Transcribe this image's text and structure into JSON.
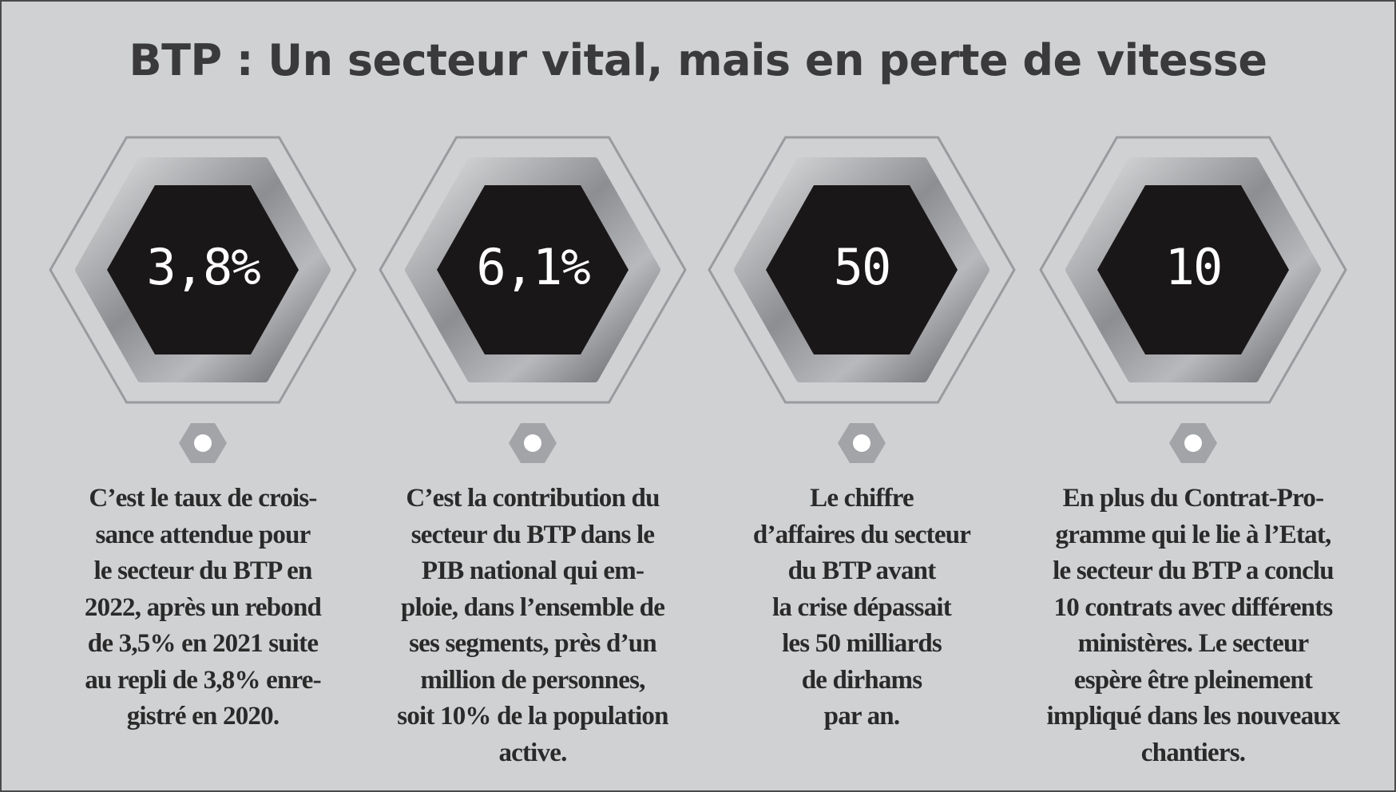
{
  "title": "BTP : Un secteur vital, mais en perte de vitesse",
  "colors": {
    "background": "#d0d1d3",
    "hexagon_fill": "#1a1718",
    "value_text": "#ffffff",
    "outline": "#9a9b9e"
  },
  "items": [
    {
      "value": "3,8%",
      "lines": [
        "C’est le taux de crois-",
        "sance attendue pour",
        "le secteur du BTP en",
        "2022, après un rebond",
        "de 3,5% en 2021 suite",
        "au repli de 3,8% enre-",
        "gistré en 2020."
      ]
    },
    {
      "value": "6,1%",
      "lines": [
        "C’est la contribution du",
        "secteur du BTP dans le",
        "PIB national qui em-",
        "ploie, dans l’ensemble de",
        "ses segments, près d’un",
        "million de personnes,",
        "soit 10% de la population",
        "active."
      ]
    },
    {
      "value": "50",
      "lines": [
        "Le chiffre",
        "d’affaires du secteur",
        "du BTP avant",
        "la crise dépassait",
        "les 50 milliards",
        "de dirhams",
        "par an."
      ]
    },
    {
      "value": "10",
      "lines": [
        "En plus du Contrat-Pro-",
        "gramme qui le lie à l’Etat,",
        "le secteur du BTP a conclu",
        "10 contrats avec différents",
        "ministères. Le secteur",
        "espère être pleinement",
        "impliqué dans les nouveaux",
        "chantiers."
      ]
    }
  ]
}
